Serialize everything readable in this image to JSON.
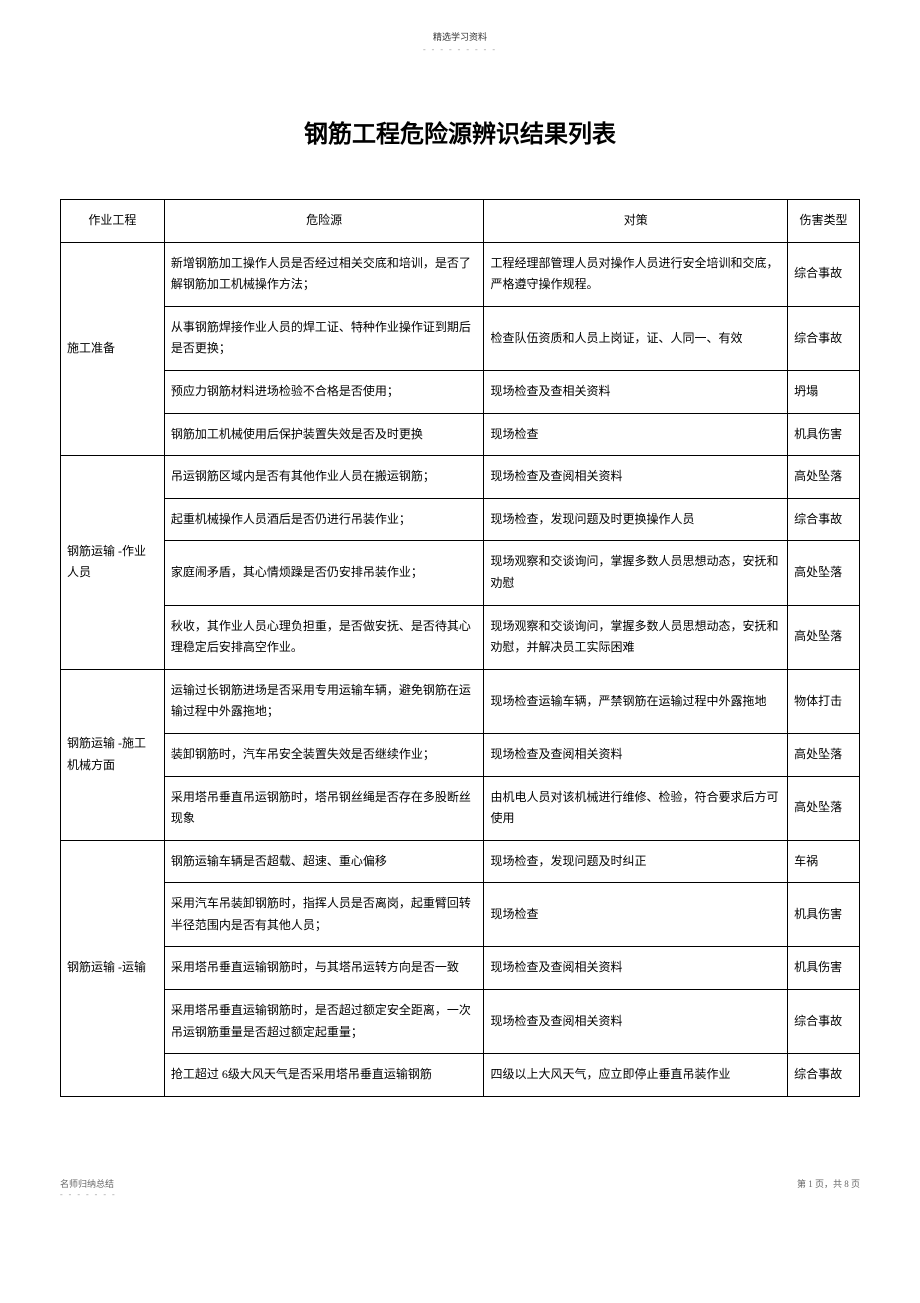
{
  "topLabel": "精选学习资料",
  "topDots": "- - - - - - - - -",
  "title": "钢筋工程危险源辨识结果列表",
  "headers": {
    "col1": "作业工程",
    "col2": "危险源",
    "col3": "对策",
    "col4": "伤害类型"
  },
  "sections": [
    {
      "category": "施工准备",
      "rows": [
        {
          "hazard": "新增钢筋加工操作人员是否经过相关交底和培训，是否了解钢筋加工机械操作方法；",
          "measure": "工程经理部管理人员对操作人员进行安全培训和交底，严格遵守操作规程。",
          "type": "综合事故"
        },
        {
          "hazard": "从事钢筋焊接作业人员的焊工证、特种作业操作证到期后是否更换；",
          "measure": "检查队伍资质和人员上岗证，证、人同一、有效",
          "type": "综合事故"
        },
        {
          "hazard": "预应力钢筋材料进场检验不合格是否使用；",
          "measure": "现场检查及查相关资料",
          "type": "坍塌"
        },
        {
          "hazard": "钢筋加工机械使用后保护装置失效是否及时更换",
          "measure": "现场检查",
          "type": "机具伤害"
        }
      ]
    },
    {
      "category": "钢筋运输 -作业人员",
      "rows": [
        {
          "hazard": "吊运钢筋区域内是否有其他作业人员在搬运钢筋；",
          "measure": "现场检查及查阅相关资料",
          "type": "高处坠落"
        },
        {
          "hazard": "起重机械操作人员酒后是否仍进行吊装作业；",
          "measure": "现场检查，发现问题及时更换操作人员",
          "type": "综合事故"
        },
        {
          "hazard": "家庭闹矛盾，其心情烦躁是否仍安排吊装作业；",
          "measure": "现场观察和交谈询问，掌握多数人员思想动态，安抚和劝慰",
          "type": "高处坠落"
        },
        {
          "hazard": "秋收，其作业人员心理负担重，是否做安抚、是否待其心理稳定后安排高空作业。",
          "measure": "现场观察和交谈询问，掌握多数人员思想动态，安抚和劝慰，并解决员工实际困难",
          "type": "高处坠落"
        }
      ]
    },
    {
      "category": "钢筋运输 -施工机械方面",
      "rows": [
        {
          "hazard": "运输过长钢筋进场是否采用专用运输车辆，避免钢筋在运输过程中外露拖地；",
          "measure": "现场检查运输车辆，严禁钢筋在运输过程中外露拖地",
          "type": "物体打击"
        },
        {
          "hazard": "装卸钢筋时，汽车吊安全装置失效是否继续作业；",
          "measure": "现场检查及查阅相关资料",
          "type": "高处坠落"
        },
        {
          "hazard": "采用塔吊垂直吊运钢筋时，塔吊钢丝绳是否存在多股断丝现象",
          "measure": "由机电人员对该机械进行维修、检验，符合要求后方可使用",
          "type": "高处坠落"
        }
      ]
    },
    {
      "category": "钢筋运输 -运输",
      "rows": [
        {
          "hazard": "钢筋运输车辆是否超载、超速、重心偏移",
          "measure": "现场检查，发现问题及时纠正",
          "type": "车祸"
        },
        {
          "hazard": "采用汽车吊装卸钢筋时，指挥人员是否离岗，起重臂回转半径范围内是否有其他人员；",
          "measure": "现场检查",
          "type": "机具伤害"
        },
        {
          "hazard": "采用塔吊垂直运输钢筋时，与其塔吊运转方向是否一致",
          "measure": "现场检查及查阅相关资料",
          "type": "机具伤害"
        },
        {
          "hazard": "采用塔吊垂直运输钢筋时，是否超过额定安全距离，一次吊运钢筋重量是否超过额定起重量；",
          "measure": "现场检查及查阅相关资料",
          "type": "综合事故"
        },
        {
          "hazard": "抢工超过 6级大风天气是否采用塔吊垂直运输钢筋",
          "measure": "四级以上大风天气，应立即停止垂直吊装作业",
          "type": "综合事故"
        }
      ]
    }
  ],
  "footer": {
    "left": "名师归纳总结",
    "leftDots": "- - - - - - -",
    "right": "第 1 页，共 8 页"
  }
}
